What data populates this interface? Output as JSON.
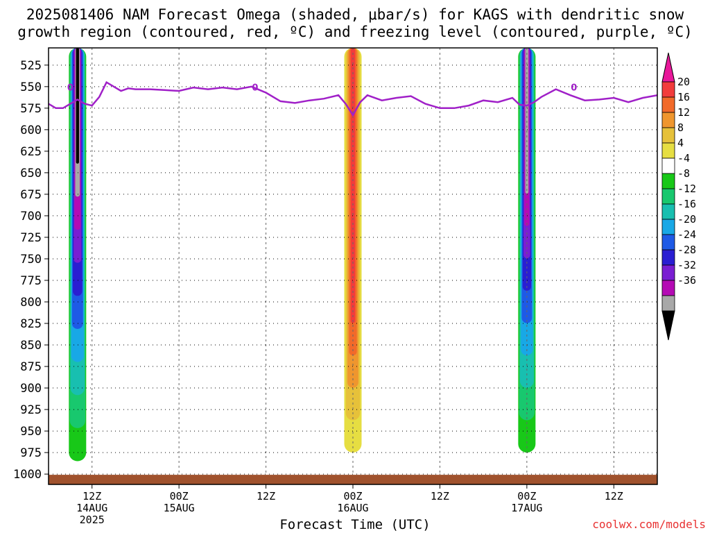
{
  "title": {
    "line1": "2025081406 NAM Forecast Omega (shaded, μbar/s) for KAGS with dendritic snow",
    "line2": "growth region (contoured, red, ºC) and freezing level (contoured, purple, ºC)"
  },
  "credit": "coolwx.com/models",
  "chart_data": {
    "type": "heatmap",
    "title": "2025081406 NAM Forecast Omega (shaded, μbar/s) for KAGS with dendritic snow growth region (contoured, red, ºC) and freezing level (contoured, purple, ºC)",
    "xlabel": "Forecast Time (UTC)",
    "ylabel": "",
    "x_ticks": [
      {
        "h": 6,
        "label": "12Z",
        "sub1": "14AUG",
        "sub2": "2025"
      },
      {
        "h": 18,
        "label": "00Z",
        "sub1": "15AUG",
        "sub2": ""
      },
      {
        "h": 30,
        "label": "12Z",
        "sub1": "",
        "sub2": ""
      },
      {
        "h": 42,
        "label": "00Z",
        "sub1": "16AUG",
        "sub2": ""
      },
      {
        "h": 54,
        "label": "12Z",
        "sub1": "",
        "sub2": ""
      },
      {
        "h": 66,
        "label": "00Z",
        "sub1": "17AUG",
        "sub2": ""
      },
      {
        "h": 78,
        "label": "12Z",
        "sub1": "",
        "sub2": ""
      }
    ],
    "y_ticks": [
      525,
      550,
      575,
      600,
      625,
      650,
      675,
      700,
      725,
      750,
      775,
      800,
      825,
      850,
      875,
      900,
      925,
      950,
      975,
      1000
    ],
    "ylim": [
      1012,
      505
    ],
    "xlim_hours": [
      0,
      84
    ],
    "grid": true,
    "colorbar": {
      "labels": [
        "20",
        "16",
        "12",
        "8",
        "4",
        "-4",
        "-8",
        "-12",
        "-16",
        "-20",
        "-24",
        "-28",
        "-32",
        "-36"
      ],
      "colors": [
        "#e8189a",
        "#f23c3c",
        "#f26a2a",
        "#ef962e",
        "#e6c13a",
        "#e6de42",
        "#ffffff",
        "#18c818",
        "#18c86e",
        "#18bfb0",
        "#18a8e6",
        "#1e5ae6",
        "#2a1ed2",
        "#7a1ed2",
        "#b40ab4",
        "#a8a8a8",
        "#000000"
      ]
    },
    "omega_features": [
      {
        "name": "",
        "h_center": 4,
        "p_top": 505,
        "p_bottom": 985,
        "peak": -40
      },
      {
        "name": "",
        "h_center": 42,
        "p_top": 505,
        "p_bottom": 975,
        "peak": 22
      },
      {
        "name": "",
        "h_center": 66,
        "p_top": 505,
        "p_bottom": 975,
        "peak": -38
      }
    ],
    "freezing_level": {
      "label": "0",
      "hours": [
        0,
        1,
        2,
        3,
        4,
        5,
        6,
        7,
        8,
        9,
        10,
        11,
        12,
        14,
        16,
        18,
        20,
        22,
        24,
        26,
        28,
        30,
        32,
        34,
        36,
        38,
        40,
        41,
        42,
        43,
        44,
        46,
        48,
        50,
        52,
        54,
        56,
        58,
        60,
        62,
        64,
        65,
        66,
        67,
        68,
        70,
        72,
        74,
        76,
        78,
        80,
        82,
        84
      ],
      "pressure": [
        570,
        575,
        575,
        570,
        565,
        570,
        572,
        562,
        545,
        550,
        555,
        552,
        553,
        553,
        554,
        555,
        551,
        553,
        551,
        553,
        550,
        557,
        567,
        569,
        566,
        564,
        560,
        570,
        583,
        568,
        560,
        566,
        563,
        561,
        570,
        575,
        575,
        572,
        566,
        568,
        563,
        571,
        572,
        568,
        562,
        553,
        560,
        566,
        565,
        563,
        568,
        563,
        560
      ]
    }
  }
}
